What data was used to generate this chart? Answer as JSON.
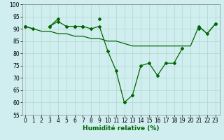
{
  "title": "Humidité relative (%)",
  "background_color": "#d0eef0",
  "grid_color": "#b0d8c8",
  "line_color": "#006600",
  "x_values": [
    0,
    1,
    2,
    3,
    4,
    5,
    6,
    7,
    8,
    9,
    10,
    11,
    12,
    13,
    14,
    15,
    16,
    17,
    18,
    19,
    20,
    21,
    22,
    23
  ],
  "line1": [
    91,
    90,
    null,
    91,
    93,
    91,
    91,
    91,
    90,
    91,
    81,
    73,
    60,
    63,
    75,
    76,
    71,
    76,
    76,
    82,
    null,
    91,
    88,
    92
  ],
  "line2": [
    91,
    null,
    null,
    91,
    94,
    null,
    91,
    91,
    null,
    94,
    null,
    null,
    null,
    null,
    null,
    null,
    null,
    null,
    null,
    null,
    null,
    90,
    null,
    92
  ],
  "line3": [
    91,
    90,
    89,
    89,
    88,
    88,
    87,
    87,
    86,
    86,
    85,
    85,
    84,
    83,
    83,
    83,
    83,
    83,
    83,
    83,
    83,
    91,
    88,
    92
  ],
  "ylim": [
    55,
    100
  ],
  "xlim": [
    0,
    23
  ],
  "yticks": [
    55,
    60,
    65,
    70,
    75,
    80,
    85,
    90,
    95,
    100
  ],
  "xticks": [
    0,
    1,
    2,
    3,
    4,
    5,
    6,
    7,
    8,
    9,
    10,
    11,
    12,
    13,
    14,
    15,
    16,
    17,
    18,
    19,
    20,
    21,
    22,
    23
  ],
  "xlabel_fontsize": 6.5,
  "tick_fontsize": 5.5
}
